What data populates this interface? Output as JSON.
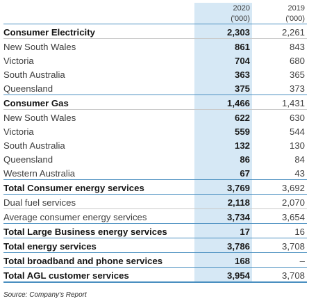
{
  "header": {
    "year_a": "2020",
    "year_b": "2019",
    "unit_a": "('000)",
    "unit_b": "('000)"
  },
  "rows": [
    {
      "label": "Consumer Electricity",
      "v2020": "2,303",
      "v2019": "2,261"
    },
    {
      "label": "New South Wales",
      "v2020": "861",
      "v2019": "843"
    },
    {
      "label": "Victoria",
      "v2020": "704",
      "v2019": "680"
    },
    {
      "label": "South Australia",
      "v2020": "363",
      "v2019": "365"
    },
    {
      "label": "Queensland",
      "v2020": "375",
      "v2019": "373"
    },
    {
      "label": "Consumer Gas",
      "v2020": "1,466",
      "v2019": "1,431"
    },
    {
      "label": "New South Wales",
      "v2020": "622",
      "v2019": "630"
    },
    {
      "label": "Victoria",
      "v2020": "559",
      "v2019": "544"
    },
    {
      "label": "South Australia",
      "v2020": "132",
      "v2019": "130"
    },
    {
      "label": "Queensland",
      "v2020": "86",
      "v2019": "84"
    },
    {
      "label": "Western Australia",
      "v2020": "67",
      "v2019": "43"
    },
    {
      "label": "Total Consumer energy services",
      "v2020": "3,769",
      "v2019": "3,692"
    },
    {
      "label": "Dual fuel services",
      "v2020": "2,118",
      "v2019": "2,070"
    },
    {
      "label": "Average consumer energy services",
      "v2020": "3,734",
      "v2019": "3,654"
    },
    {
      "label": "Total Large Business energy services",
      "v2020": "17",
      "v2019": "16"
    },
    {
      "label": "Total energy services",
      "v2020": "3,786",
      "v2019": "3,708"
    },
    {
      "label": "Total broadband and phone services",
      "v2020": "168",
      "v2019": "–"
    },
    {
      "label": "Total AGL customer services",
      "v2020": "3,954",
      "v2019": "3,708"
    }
  ],
  "source": "Source: Company's Report"
}
